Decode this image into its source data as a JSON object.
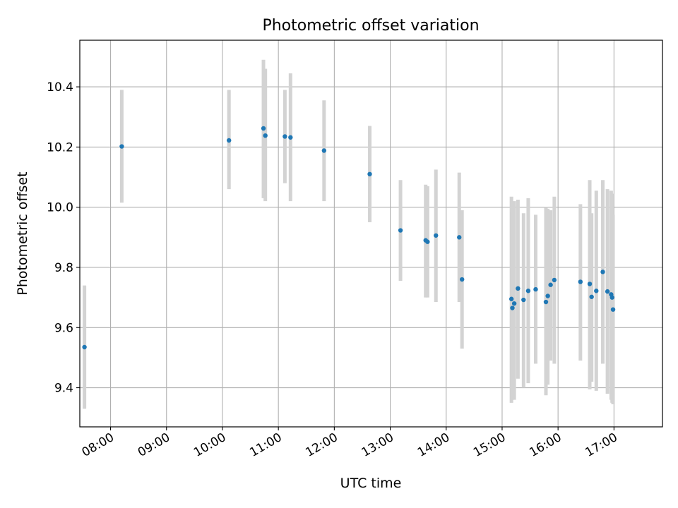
{
  "chart_data": {
    "type": "scatter",
    "title": "Photometric offset variation",
    "xlabel": "UTC time",
    "ylabel": "Photometric offset",
    "x_ticks": [
      "08:00",
      "09:00",
      "10:00",
      "11:00",
      "12:00",
      "13:00",
      "14:00",
      "15:00",
      "16:00",
      "17:00"
    ],
    "y_ticks": [
      "9.4",
      "9.6",
      "9.8",
      "10.0",
      "10.2",
      "10.4"
    ],
    "xlim": [
      "07:27",
      "17:52"
    ],
    "ylim": [
      9.27,
      10.555
    ],
    "grid": true,
    "marker_color": "#1f77b4",
    "errorbar_color": "#d3d3d3",
    "points": [
      {
        "t": "07:32",
        "y": 9.535,
        "lo": 9.33,
        "hi": 9.74
      },
      {
        "t": "08:12",
        "y": 10.202,
        "lo": 10.015,
        "hi": 10.39
      },
      {
        "t": "10:07",
        "y": 10.222,
        "lo": 10.06,
        "hi": 10.39
      },
      {
        "t": "10:44",
        "y": 10.262,
        "lo": 10.03,
        "hi": 10.49
      },
      {
        "t": "10:46",
        "y": 10.238,
        "lo": 10.02,
        "hi": 10.46
      },
      {
        "t": "11:07",
        "y": 10.235,
        "lo": 10.08,
        "hi": 10.39
      },
      {
        "t": "11:13",
        "y": 10.232,
        "lo": 10.02,
        "hi": 10.445
      },
      {
        "t": "11:49",
        "y": 10.188,
        "lo": 10.02,
        "hi": 10.355
      },
      {
        "t": "12:38",
        "y": 10.11,
        "lo": 9.95,
        "hi": 10.27
      },
      {
        "t": "13:11",
        "y": 9.923,
        "lo": 9.755,
        "hi": 10.09
      },
      {
        "t": "13:38",
        "y": 9.89,
        "lo": 9.7,
        "hi": 10.075
      },
      {
        "t": "13:40",
        "y": 9.885,
        "lo": 9.7,
        "hi": 10.07
      },
      {
        "t": "13:49",
        "y": 9.906,
        "lo": 9.685,
        "hi": 10.125
      },
      {
        "t": "14:14",
        "y": 9.9,
        "lo": 9.685,
        "hi": 10.115
      },
      {
        "t": "14:17",
        "y": 9.76,
        "lo": 9.53,
        "hi": 9.99
      },
      {
        "t": "15:10",
        "y": 9.695,
        "lo": 9.35,
        "hi": 10.035
      },
      {
        "t": "15:11",
        "y": 9.665,
        "lo": 9.36,
        "hi": 9.985
      },
      {
        "t": "15:13",
        "y": 9.68,
        "lo": 9.36,
        "hi": 10.02
      },
      {
        "t": "15:17",
        "y": 9.73,
        "lo": 9.43,
        "hi": 10.025
      },
      {
        "t": "15:23",
        "y": 9.692,
        "lo": 9.4,
        "hi": 9.98
      },
      {
        "t": "15:28",
        "y": 9.722,
        "lo": 9.415,
        "hi": 10.03
      },
      {
        "t": "15:36",
        "y": 9.727,
        "lo": 9.48,
        "hi": 9.975
      },
      {
        "t": "15:47",
        "y": 9.685,
        "lo": 9.375,
        "hi": 10.0
      },
      {
        "t": "15:49",
        "y": 9.705,
        "lo": 9.41,
        "hi": 9.995
      },
      {
        "t": "15:52",
        "y": 9.742,
        "lo": 9.49,
        "hi": 9.99
      },
      {
        "t": "15:56",
        "y": 9.758,
        "lo": 9.48,
        "hi": 10.035
      },
      {
        "t": "16:24",
        "y": 9.752,
        "lo": 9.49,
        "hi": 10.01
      },
      {
        "t": "16:34",
        "y": 9.745,
        "lo": 9.395,
        "hi": 10.09
      },
      {
        "t": "16:36",
        "y": 9.702,
        "lo": 9.42,
        "hi": 9.98
      },
      {
        "t": "16:41",
        "y": 9.722,
        "lo": 9.39,
        "hi": 10.055
      },
      {
        "t": "16:48",
        "y": 9.785,
        "lo": 9.48,
        "hi": 10.09
      },
      {
        "t": "16:53",
        "y": 9.72,
        "lo": 9.38,
        "hi": 10.06
      },
      {
        "t": "16:57",
        "y": 9.71,
        "lo": 9.36,
        "hi": 10.055
      },
      {
        "t": "16:58",
        "y": 9.7,
        "lo": 9.35,
        "hi": 10.045
      },
      {
        "t": "16:59",
        "y": 9.66,
        "lo": 9.345,
        "hi": 9.975
      }
    ]
  }
}
